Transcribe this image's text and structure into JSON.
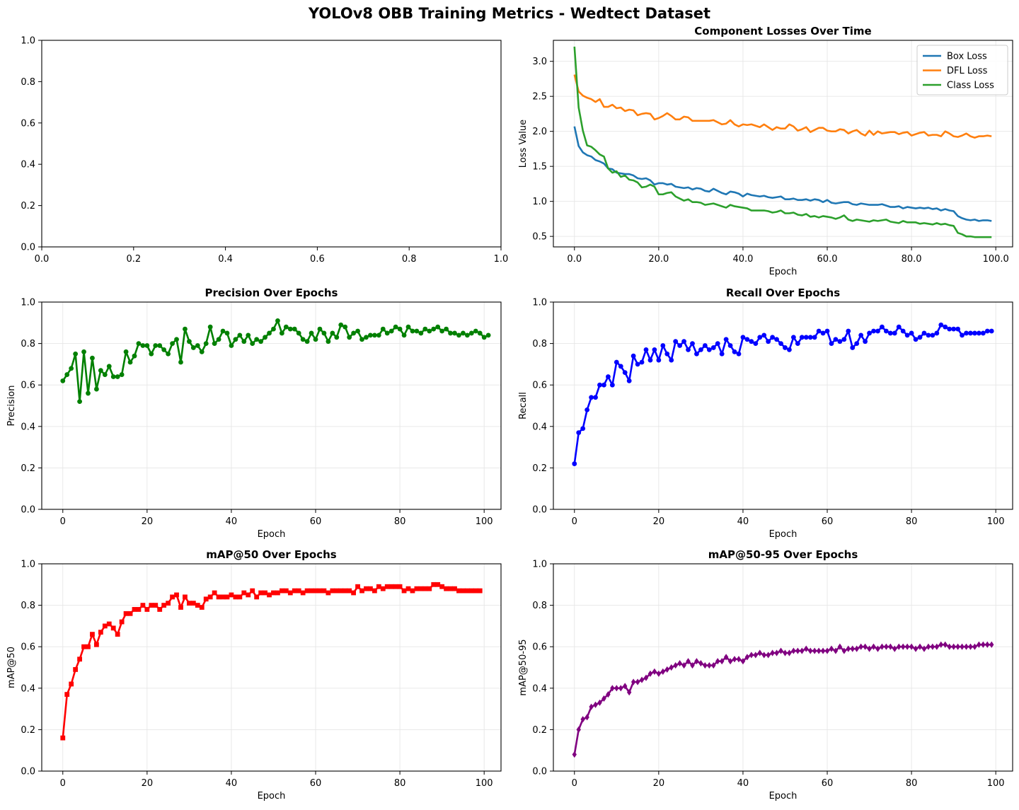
{
  "figure": {
    "title": "YOLOv8 OBB Training Metrics - Wedtect Dataset"
  },
  "chart_data": [
    {
      "id": "empty",
      "type": "line",
      "title": "",
      "xlabel": "",
      "ylabel": "",
      "xlim": [
        0,
        1
      ],
      "ylim": [
        0,
        1
      ],
      "xticks": [
        0.0,
        0.2,
        0.4,
        0.6,
        0.8,
        1.0
      ],
      "yticks": [
        0.0,
        0.2,
        0.4,
        0.6,
        0.8,
        1.0
      ],
      "grid": false,
      "series": []
    },
    {
      "id": "losses",
      "type": "line",
      "title": "Component Losses Over Time",
      "xlabel": "Epoch",
      "ylabel": "Loss Value",
      "xlim": [
        -5,
        104
      ],
      "ylim": [
        0.35,
        3.3
      ],
      "xticks": [
        0,
        20,
        40,
        60,
        80,
        100
      ],
      "yticks": [
        0.5,
        1.0,
        1.5,
        2.0,
        2.5,
        3.0
      ],
      "grid": true,
      "legend": "top-right",
      "series": [
        {
          "name": "Box Loss",
          "color": "#1f77b4",
          "values": [
            2.07,
            1.79,
            1.7,
            1.66,
            1.64,
            1.59,
            1.57,
            1.54,
            1.47,
            1.46,
            1.41,
            1.4,
            1.39,
            1.39,
            1.37,
            1.33,
            1.32,
            1.33,
            1.3,
            1.24,
            1.26,
            1.26,
            1.24,
            1.25,
            1.21,
            1.2,
            1.19,
            1.2,
            1.17,
            1.19,
            1.18,
            1.15,
            1.14,
            1.18,
            1.15,
            1.12,
            1.1,
            1.14,
            1.13,
            1.11,
            1.07,
            1.11,
            1.09,
            1.08,
            1.07,
            1.08,
            1.06,
            1.05,
            1.06,
            1.07,
            1.03,
            1.03,
            1.04,
            1.02,
            1.02,
            1.03,
            1.01,
            1.03,
            1.02,
            0.99,
            1.02,
            0.98,
            0.97,
            0.98,
            0.99,
            0.99,
            0.96,
            0.95,
            0.97,
            0.96,
            0.95,
            0.95,
            0.95,
            0.96,
            0.94,
            0.92,
            0.92,
            0.93,
            0.9,
            0.92,
            0.91,
            0.9,
            0.91,
            0.9,
            0.91,
            0.89,
            0.9,
            0.87,
            0.89,
            0.87,
            0.86,
            0.79,
            0.76,
            0.74,
            0.73,
            0.74,
            0.72,
            0.73,
            0.73,
            0.72
          ]
        },
        {
          "name": "DFL Loss",
          "color": "#ff7f0e",
          "values": [
            2.81,
            2.57,
            2.51,
            2.48,
            2.46,
            2.42,
            2.46,
            2.35,
            2.35,
            2.38,
            2.33,
            2.34,
            2.29,
            2.31,
            2.3,
            2.23,
            2.25,
            2.26,
            2.25,
            2.17,
            2.19,
            2.22,
            2.26,
            2.22,
            2.17,
            2.17,
            2.21,
            2.2,
            2.15,
            2.15,
            2.15,
            2.15,
            2.15,
            2.16,
            2.13,
            2.1,
            2.11,
            2.16,
            2.1,
            2.07,
            2.1,
            2.09,
            2.1,
            2.08,
            2.06,
            2.1,
            2.06,
            2.02,
            2.06,
            2.04,
            2.04,
            2.1,
            2.07,
            2.01,
            2.03,
            2.06,
            1.99,
            2.02,
            2.05,
            2.05,
            2.01,
            2.0,
            2.0,
            2.03,
            2.02,
            1.97,
            2.0,
            2.02,
            1.97,
            1.94,
            2.01,
            1.95,
            2.0,
            1.97,
            1.98,
            1.99,
            1.99,
            1.96,
            1.98,
            1.99,
            1.94,
            1.96,
            1.98,
            1.99,
            1.94,
            1.95,
            1.95,
            1.93,
            2.0,
            1.97,
            1.93,
            1.92,
            1.94,
            1.97,
            1.93,
            1.91,
            1.93,
            1.93,
            1.94,
            1.93
          ]
        },
        {
          "name": "Class Loss",
          "color": "#2ca02c",
          "values": [
            3.21,
            2.34,
            2.01,
            1.8,
            1.78,
            1.73,
            1.67,
            1.64,
            1.47,
            1.41,
            1.43,
            1.35,
            1.37,
            1.31,
            1.3,
            1.27,
            1.2,
            1.21,
            1.24,
            1.21,
            1.1,
            1.1,
            1.12,
            1.13,
            1.07,
            1.04,
            1.01,
            1.03,
            0.99,
            0.99,
            0.98,
            0.95,
            0.96,
            0.97,
            0.95,
            0.93,
            0.91,
            0.95,
            0.93,
            0.92,
            0.91,
            0.9,
            0.87,
            0.87,
            0.87,
            0.87,
            0.86,
            0.84,
            0.85,
            0.87,
            0.83,
            0.83,
            0.84,
            0.81,
            0.8,
            0.82,
            0.78,
            0.79,
            0.77,
            0.79,
            0.78,
            0.77,
            0.75,
            0.77,
            0.8,
            0.74,
            0.72,
            0.74,
            0.73,
            0.72,
            0.71,
            0.73,
            0.72,
            0.73,
            0.74,
            0.71,
            0.7,
            0.69,
            0.72,
            0.7,
            0.7,
            0.7,
            0.68,
            0.69,
            0.68,
            0.67,
            0.69,
            0.67,
            0.68,
            0.66,
            0.65,
            0.55,
            0.53,
            0.5,
            0.5,
            0.49,
            0.49,
            0.49,
            0.49,
            0.49
          ]
        }
      ]
    },
    {
      "id": "precision",
      "type": "line",
      "title": "Precision Over Epochs",
      "xlabel": "Epoch",
      "ylabel": "Precision",
      "xlim": [
        -5,
        104
      ],
      "ylim": [
        0,
        1
      ],
      "xticks": [
        0,
        20,
        40,
        60,
        80,
        100
      ],
      "yticks": [
        0.0,
        0.2,
        0.4,
        0.6,
        0.8,
        1.0
      ],
      "grid": true,
      "series": [
        {
          "color": "#008000",
          "marker": "circle",
          "values": [
            0.62,
            0.65,
            0.68,
            0.75,
            0.52,
            0.76,
            0.56,
            0.73,
            0.58,
            0.67,
            0.65,
            0.69,
            0.64,
            0.64,
            0.65,
            0.76,
            0.71,
            0.74,
            0.8,
            0.79,
            0.79,
            0.75,
            0.79,
            0.79,
            0.77,
            0.75,
            0.8,
            0.82,
            0.71,
            0.87,
            0.81,
            0.78,
            0.79,
            0.76,
            0.8,
            0.88,
            0.8,
            0.82,
            0.86,
            0.85,
            0.79,
            0.82,
            0.84,
            0.81,
            0.84,
            0.8,
            0.82,
            0.81,
            0.83,
            0.85,
            0.87,
            0.91,
            0.85,
            0.88,
            0.87,
            0.87,
            0.85,
            0.82,
            0.81,
            0.85,
            0.82,
            0.87,
            0.85,
            0.81,
            0.85,
            0.83,
            0.89,
            0.88,
            0.83,
            0.85,
            0.86,
            0.82,
            0.83,
            0.84,
            0.84,
            0.84,
            0.87,
            0.85,
            0.86,
            0.88,
            0.87,
            0.84,
            0.88,
            0.86,
            0.86,
            0.85,
            0.87,
            0.86,
            0.87,
            0.88,
            0.86,
            0.87,
            0.85,
            0.85,
            0.84,
            0.85,
            0.84,
            0.85,
            0.86,
            0.85,
            0.83,
            0.84
          ]
        }
      ]
    },
    {
      "id": "recall",
      "type": "line",
      "title": "Recall Over Epochs",
      "xlabel": "Epoch",
      "ylabel": "Recall",
      "xlim": [
        -5,
        104
      ],
      "ylim": [
        0,
        1
      ],
      "xticks": [
        0,
        20,
        40,
        60,
        80,
        100
      ],
      "yticks": [
        0.0,
        0.2,
        0.4,
        0.6,
        0.8,
        1.0
      ],
      "grid": true,
      "series": [
        {
          "color": "#0000ff",
          "marker": "circle",
          "values": [
            0.22,
            0.37,
            0.39,
            0.48,
            0.54,
            0.54,
            0.6,
            0.6,
            0.64,
            0.6,
            0.71,
            0.69,
            0.66,
            0.62,
            0.74,
            0.7,
            0.71,
            0.77,
            0.72,
            0.77,
            0.72,
            0.79,
            0.75,
            0.72,
            0.81,
            0.79,
            0.81,
            0.77,
            0.8,
            0.75,
            0.77,
            0.79,
            0.77,
            0.78,
            0.8,
            0.75,
            0.82,
            0.79,
            0.76,
            0.75,
            0.83,
            0.82,
            0.81,
            0.8,
            0.83,
            0.84,
            0.81,
            0.83,
            0.82,
            0.8,
            0.78,
            0.77,
            0.83,
            0.8,
            0.83,
            0.83,
            0.83,
            0.83,
            0.86,
            0.85,
            0.86,
            0.8,
            0.82,
            0.81,
            0.82,
            0.86,
            0.78,
            0.8,
            0.84,
            0.81,
            0.85,
            0.86,
            0.86,
            0.88,
            0.86,
            0.85,
            0.85,
            0.88,
            0.86,
            0.84,
            0.85,
            0.82,
            0.83,
            0.85,
            0.84,
            0.84,
            0.85,
            0.89,
            0.88,
            0.87,
            0.87,
            0.87,
            0.84,
            0.85,
            0.85,
            0.85,
            0.85,
            0.85,
            0.86,
            0.86
          ]
        }
      ]
    },
    {
      "id": "map50",
      "type": "line",
      "title": "mAP@50 Over Epochs",
      "xlabel": "Epoch",
      "ylabel": "mAP@50",
      "xlim": [
        -5,
        104
      ],
      "ylim": [
        0,
        1
      ],
      "xticks": [
        0,
        20,
        40,
        60,
        80,
        100
      ],
      "yticks": [
        0.0,
        0.2,
        0.4,
        0.6,
        0.8,
        1.0
      ],
      "grid": true,
      "series": [
        {
          "color": "#ff0000",
          "marker": "square",
          "values": [
            0.16,
            0.37,
            0.42,
            0.49,
            0.54,
            0.6,
            0.6,
            0.66,
            0.61,
            0.67,
            0.7,
            0.71,
            0.69,
            0.66,
            0.72,
            0.76,
            0.76,
            0.78,
            0.78,
            0.8,
            0.78,
            0.8,
            0.8,
            0.78,
            0.8,
            0.81,
            0.84,
            0.85,
            0.79,
            0.84,
            0.81,
            0.81,
            0.8,
            0.79,
            0.83,
            0.84,
            0.86,
            0.84,
            0.84,
            0.84,
            0.85,
            0.84,
            0.84,
            0.86,
            0.85,
            0.87,
            0.84,
            0.86,
            0.86,
            0.85,
            0.86,
            0.86,
            0.87,
            0.87,
            0.86,
            0.87,
            0.87,
            0.86,
            0.87,
            0.87,
            0.87,
            0.87,
            0.87,
            0.86,
            0.87,
            0.87,
            0.87,
            0.87,
            0.87,
            0.86,
            0.89,
            0.87,
            0.88,
            0.88,
            0.87,
            0.89,
            0.88,
            0.89,
            0.89,
            0.89,
            0.89,
            0.87,
            0.88,
            0.87,
            0.88,
            0.88,
            0.88,
            0.88,
            0.9,
            0.9,
            0.89,
            0.88,
            0.88,
            0.88,
            0.87,
            0.87,
            0.87,
            0.87,
            0.87,
            0.87
          ]
        }
      ]
    },
    {
      "id": "map5095",
      "type": "line",
      "title": "mAP@50-95 Over Epochs",
      "xlabel": "Epoch",
      "ylabel": "mAP@50-95",
      "xlim": [
        -5,
        104
      ],
      "ylim": [
        0,
        1
      ],
      "xticks": [
        0,
        20,
        40,
        60,
        80,
        100
      ],
      "yticks": [
        0.0,
        0.2,
        0.4,
        0.6,
        0.8,
        1.0
      ],
      "grid": true,
      "series": [
        {
          "color": "#800080",
          "marker": "diamond",
          "values": [
            0.08,
            0.2,
            0.25,
            0.26,
            0.31,
            0.32,
            0.33,
            0.35,
            0.37,
            0.4,
            0.4,
            0.4,
            0.41,
            0.38,
            0.43,
            0.43,
            0.44,
            0.45,
            0.47,
            0.48,
            0.47,
            0.48,
            0.49,
            0.5,
            0.51,
            0.52,
            0.51,
            0.53,
            0.51,
            0.53,
            0.52,
            0.51,
            0.51,
            0.51,
            0.53,
            0.53,
            0.55,
            0.53,
            0.54,
            0.54,
            0.53,
            0.55,
            0.56,
            0.56,
            0.57,
            0.56,
            0.56,
            0.57,
            0.57,
            0.58,
            0.57,
            0.57,
            0.58,
            0.58,
            0.58,
            0.59,
            0.58,
            0.58,
            0.58,
            0.58,
            0.58,
            0.59,
            0.58,
            0.6,
            0.58,
            0.59,
            0.59,
            0.59,
            0.6,
            0.6,
            0.59,
            0.6,
            0.59,
            0.6,
            0.6,
            0.6,
            0.59,
            0.6,
            0.6,
            0.6,
            0.6,
            0.59,
            0.6,
            0.59,
            0.6,
            0.6,
            0.6,
            0.61,
            0.61,
            0.6,
            0.6,
            0.6,
            0.6,
            0.6,
            0.6,
            0.6,
            0.61,
            0.61,
            0.61,
            0.61
          ]
        }
      ]
    }
  ]
}
